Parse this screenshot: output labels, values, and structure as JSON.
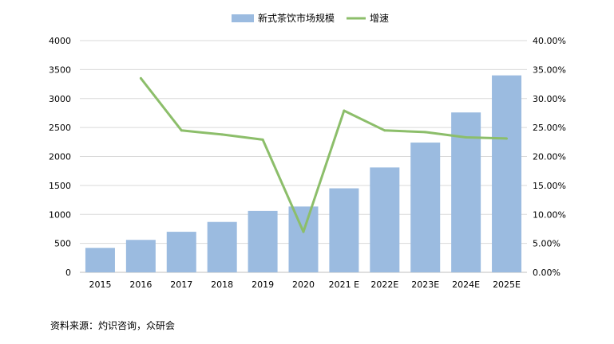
{
  "chart_data": {
    "type": "bar",
    "categories": [
      "2015",
      "2016",
      "2017",
      "2018",
      "2019",
      "2020",
      "2021E",
      "2022E",
      "2023E",
      "2024E",
      "2025E"
    ],
    "series": [
      {
        "name": "新式茶饮市场规模",
        "type": "bar",
        "axis": "left",
        "color": "#9bbbe0",
        "values": [
          422,
          560,
          700,
          870,
          1060,
          1136,
          1450,
          1810,
          2240,
          2760,
          3400
        ]
      },
      {
        "name": "增速",
        "type": "line",
        "axis": "right",
        "color": "#8cbe6a",
        "values": [
          null,
          33.5,
          24.5,
          23.8,
          22.9,
          7.0,
          27.9,
          24.5,
          24.2,
          23.3,
          23.1
        ]
      }
    ],
    "y_left": {
      "lim": [
        0,
        4000
      ],
      "ticks": [
        "0",
        "500",
        "1000",
        "1500",
        "2000",
        "2500",
        "3000",
        "3500",
        "4000"
      ]
    },
    "y_right": {
      "lim": [
        0,
        40
      ],
      "ticks": [
        "0.00%",
        "5.00%",
        "10.00%",
        "15.00%",
        "20.00%",
        "25.00%",
        "30.00%",
        "35.00%",
        "40.00%"
      ]
    },
    "x_labels": [
      "2015",
      "2016",
      "2017",
      "2018",
      "2019",
      "2020",
      "2021 E",
      "2022E",
      "2023E",
      "2024E",
      "2025E"
    ],
    "grid": true,
    "legend_position": "top-center"
  },
  "source_text": "资料来源：灼识咨询，众研会"
}
